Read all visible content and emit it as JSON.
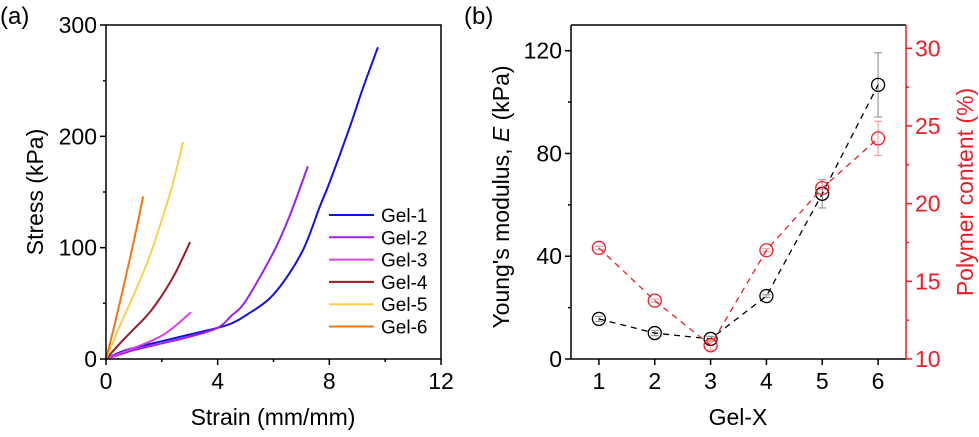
{
  "chart_data": [
    {
      "panel": "(a)",
      "type": "line",
      "title": "",
      "xlabel": "Strain (mm/mm)",
      "ylabel": "Stress (kPa)",
      "xlim": [
        0,
        12
      ],
      "ylim": [
        0,
        300
      ],
      "xticks": [
        0,
        4,
        8,
        12
      ],
      "xtick_labels": [
        "0",
        "4",
        "8",
        "12"
      ],
      "yticks": [
        0,
        100,
        200,
        300
      ],
      "ytick_labels": [
        "0",
        "100",
        "200",
        "300"
      ],
      "grid": false,
      "legend_position": "bottom-right",
      "series": [
        {
          "name": "Gel-1",
          "color": "#1010e6",
          "x": [
            0,
            0.5,
            1,
            2,
            3,
            4,
            4.5,
            5,
            6,
            7,
            7.66,
            8,
            8.7,
            9.2,
            9.74
          ],
          "y": [
            0,
            6,
            10,
            16,
            22,
            28,
            32,
            39,
            58,
            95,
            137,
            158,
            206,
            243,
            280
          ]
        },
        {
          "name": "Gel-2",
          "color": "#a020e8",
          "x": [
            0,
            0.5,
            1,
            2,
            3,
            4,
            4.48,
            5,
            6,
            6.6,
            7.23
          ],
          "y": [
            0,
            4,
            8,
            14,
            20,
            28,
            38.6,
            52,
            96,
            130,
            173
          ]
        },
        {
          "name": "Gel-3",
          "color": "#e040e8",
          "x": [
            0,
            0.5,
            1,
            1.5,
            2,
            2.5,
            3.04
          ],
          "y": [
            0,
            5,
            10,
            15,
            21,
            30,
            42
          ]
        },
        {
          "name": "Gel-4",
          "color": "#9a1a2a",
          "x": [
            0,
            0.5,
            1,
            1.5,
            2,
            2.5,
            3.01
          ],
          "y": [
            0,
            14,
            27,
            40,
            57,
            78,
            105
          ]
        },
        {
          "name": "Gel-5",
          "color": "#f8d050",
          "x": [
            0,
            0.5,
            1,
            1.5,
            2,
            2.4,
            2.76
          ],
          "y": [
            0,
            30,
            58,
            88,
            125,
            158,
            195
          ]
        },
        {
          "name": "Gel-6",
          "color": "#f07810",
          "x": [
            0,
            0.3,
            0.6,
            0.9,
            1.1,
            1.33
          ],
          "y": [
            0,
            30,
            62,
            95,
            118,
            146
          ]
        }
      ]
    },
    {
      "panel": "(b)",
      "type": "scatter",
      "title": "",
      "xlabel": "Gel-X",
      "ylabel": "Young's modulus, E (kPa)",
      "ylabel_parts": {
        "pre": "Young's modulus, ",
        "italic": "E",
        "post": " (kPa)"
      },
      "y2label": "Polymer content (%)",
      "xlim": [
        0.5,
        6.5
      ],
      "ylim": [
        0,
        130
      ],
      "y2lim": [
        10,
        31.5
      ],
      "xticks": [
        1,
        2,
        3,
        4,
        5,
        6
      ],
      "xtick_labels": [
        "1",
        "2",
        "3",
        "4",
        "5",
        "6"
      ],
      "yticks": [
        0,
        40,
        80,
        120
      ],
      "ytick_labels": [
        "0",
        "40",
        "80",
        "120"
      ],
      "y2ticks": [
        10,
        15,
        20,
        25,
        30
      ],
      "y2tick_labels": [
        "10",
        "15",
        "20",
        "25",
        "30"
      ],
      "grid": false,
      "series": [
        {
          "name": "Young's modulus",
          "axis": "left",
          "color": "#000000",
          "marker": "open-circle",
          "line": "dashed",
          "x": [
            1,
            2,
            3,
            4,
            5,
            6
          ],
          "y": [
            15.6,
            10.1,
            7.8,
            24.5,
            64.3,
            106.7
          ],
          "error": [
            1.0,
            1.0,
            1.0,
            0.5,
            5.5,
            12.5
          ]
        },
        {
          "name": "Polymer content",
          "axis": "right",
          "color": "#ee1c25",
          "marker": "open-circle",
          "line": "dashed",
          "x": [
            1,
            2,
            3,
            4,
            5,
            6
          ],
          "y": [
            17.15,
            13.76,
            10.88,
            17.0,
            21.0,
            24.2
          ],
          "error": [
            0.1,
            0.1,
            0.3,
            0.1,
            0.1,
            1.1
          ]
        }
      ]
    }
  ]
}
